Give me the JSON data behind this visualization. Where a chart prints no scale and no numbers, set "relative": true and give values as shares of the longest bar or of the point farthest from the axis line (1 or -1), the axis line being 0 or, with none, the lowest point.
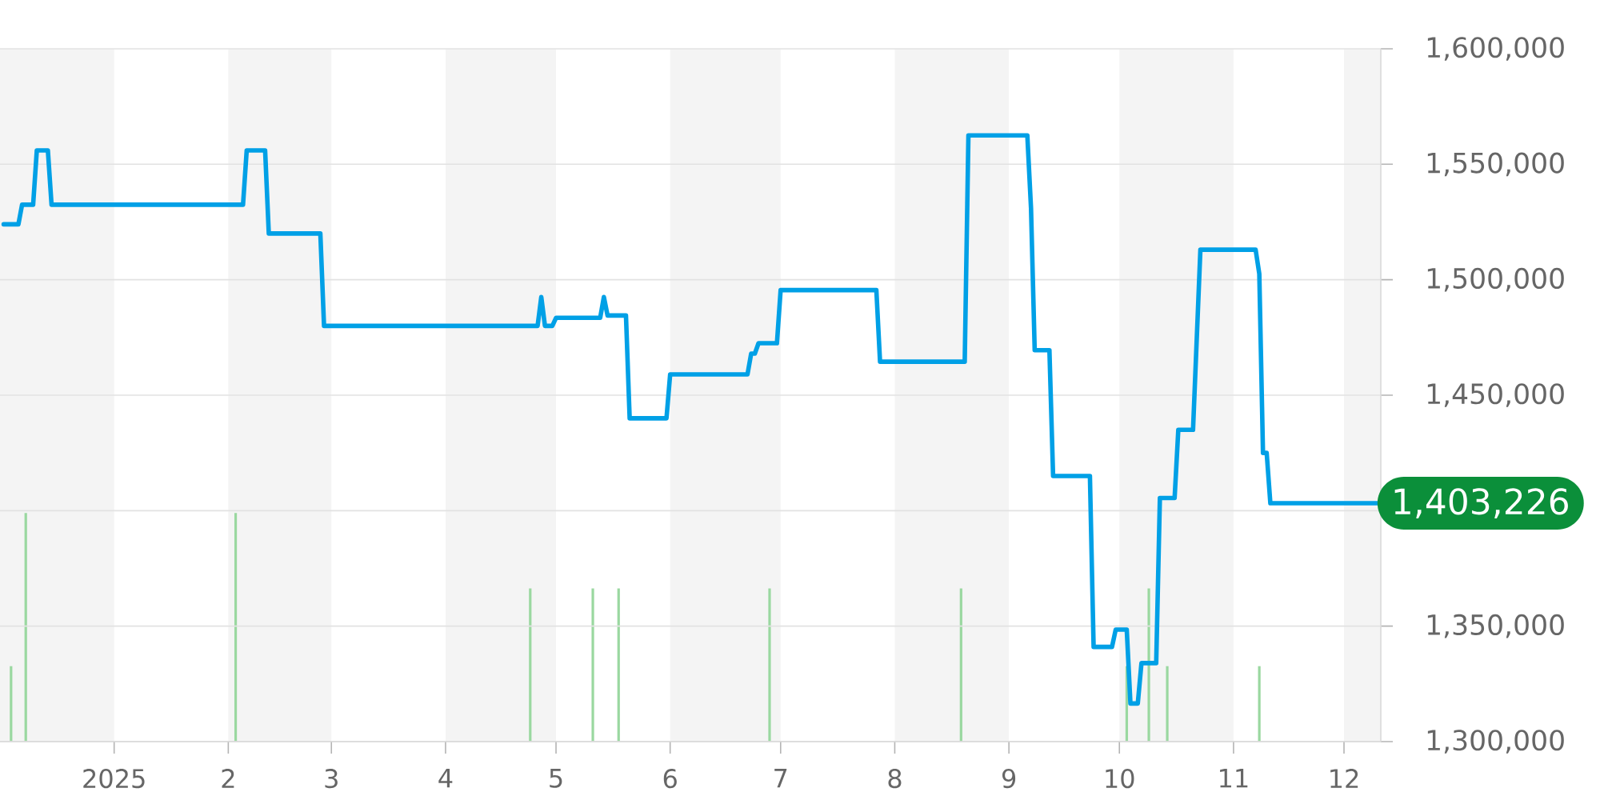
{
  "chart_data": [
    {
      "type": "line",
      "color": "#00a0e6",
      "xlim": [
        "2024-12-01",
        "2025-12-11"
      ],
      "xticks": [
        {
          "value": "2025-01-01",
          "label": "2025"
        },
        {
          "value": "2025-02-01",
          "label": "2"
        },
        {
          "value": "2025-03-01",
          "label": "3"
        },
        {
          "value": "2025-04-01",
          "label": "4"
        },
        {
          "value": "2025-05-01",
          "label": "5"
        },
        {
          "value": "2025-06-01",
          "label": "6"
        },
        {
          "value": "2025-07-01",
          "label": "7"
        },
        {
          "value": "2025-08-01",
          "label": "8"
        },
        {
          "value": "2025-09-01",
          "label": "9"
        },
        {
          "value": "2025-10-01",
          "label": "10"
        },
        {
          "value": "2025-11-01",
          "label": "11"
        },
        {
          "value": "2025-12-01",
          "label": "12"
        }
      ],
      "ylim": [
        1300000,
        1600000
      ],
      "yticks": [
        {
          "value": 1300000,
          "label": "1,300,000"
        },
        {
          "value": 1350000,
          "label": "1,350,000"
        },
        {
          "value": 1400000,
          "label": null
        },
        {
          "value": 1450000,
          "label": "1,450,000"
        },
        {
          "value": 1500000,
          "label": "1,500,000"
        },
        {
          "value": 1550000,
          "label": "1,550,000"
        },
        {
          "value": 1600000,
          "label": "1,600,000"
        }
      ],
      "grid": "y",
      "x": [
        "2024-12-02",
        "2024-12-06",
        "2024-12-07",
        "2024-12-10",
        "2024-12-11",
        "2024-12-14",
        "2024-12-15",
        "2025-02-05",
        "2025-02-06",
        "2025-02-11",
        "2025-02-12",
        "2025-02-26",
        "2025-02-27",
        "2025-04-26",
        "2025-04-27",
        "2025-04-28",
        "2025-04-30",
        "2025-05-01",
        "2025-05-13",
        "2025-05-14",
        "2025-05-15",
        "2025-05-20",
        "2025-05-21",
        "2025-05-31",
        "2025-06-01",
        "2025-06-22",
        "2025-06-23",
        "2025-06-24",
        "2025-06-25",
        "2025-06-30",
        "2025-07-01",
        "2025-07-27",
        "2025-07-28",
        "2025-08-20",
        "2025-08-21",
        "2025-09-06",
        "2025-09-07",
        "2025-09-08",
        "2025-09-12",
        "2025-09-13",
        "2025-09-23",
        "2025-09-24",
        "2025-09-29",
        "2025-09-30",
        "2025-10-03",
        "2025-10-04",
        "2025-10-06",
        "2025-10-07",
        "2025-10-11",
        "2025-10-12",
        "2025-10-16",
        "2025-10-17",
        "2025-10-21",
        "2025-10-23",
        "2025-11-07",
        "2025-11-08",
        "2025-11-09",
        "2025-11-10",
        "2025-11-11",
        "2025-12-10"
      ],
      "values": [
        1524000,
        1524000,
        1532500,
        1532500,
        1556000,
        1556000,
        1532500,
        1532500,
        1556000,
        1556000,
        1520000,
        1520000,
        1480000,
        1480000,
        1492500,
        1480000,
        1480000,
        1483500,
        1483500,
        1492500,
        1484500,
        1484500,
        1440000,
        1440000,
        1459000,
        1459000,
        1468000,
        1468000,
        1472500,
        1472500,
        1495500,
        1495500,
        1464500,
        1464500,
        1562500,
        1562500,
        1531000,
        1469500,
        1469500,
        1415000,
        1415000,
        1341000,
        1341000,
        1348500,
        1348500,
        1316500,
        1316500,
        1334000,
        1334000,
        1405500,
        1405500,
        1435000,
        1435000,
        1513000,
        1513000,
        1502500,
        1425000,
        1425000,
        1403226,
        1403226
      ],
      "value_labels": [
        null,
        null,
        null,
        null,
        null,
        null,
        null,
        null,
        null,
        null,
        null,
        null,
        null,
        null,
        null,
        null,
        null,
        null,
        null,
        null,
        null,
        null,
        null,
        null,
        null,
        null,
        null,
        null,
        null,
        null,
        null,
        null,
        null,
        null,
        null,
        null,
        null,
        null,
        null,
        null,
        null,
        null,
        null,
        null,
        null,
        null,
        null,
        null,
        null,
        null,
        null,
        null,
        null,
        null,
        null,
        null,
        null,
        null,
        null,
        "1,403,226"
      ]
    },
    {
      "type": "bar",
      "relative": true,
      "color": "#9ad8a0",
      "xlim": [
        "2024-12-01",
        "2025-12-11"
      ],
      "bands": [
        {
          "axis": "x",
          "from": "2024-12-01",
          "to": "2025-01-01",
          "color": "#f4f4f4"
        },
        {
          "axis": "x",
          "from": "2025-02-01",
          "to": "2025-03-01",
          "color": "#f4f4f4"
        },
        {
          "axis": "x",
          "from": "2025-04-01",
          "to": "2025-05-01",
          "color": "#f4f4f4"
        },
        {
          "axis": "x",
          "from": "2025-06-01",
          "to": "2025-07-01",
          "color": "#f4f4f4"
        },
        {
          "axis": "x",
          "from": "2025-08-01",
          "to": "2025-09-01",
          "color": "#f4f4f4"
        },
        {
          "axis": "x",
          "from": "2025-10-01",
          "to": "2025-11-01",
          "color": "#f4f4f4"
        },
        {
          "axis": "x",
          "from": "2025-12-01",
          "to": "2025-12-11",
          "color": "#f4f4f4"
        }
      ],
      "x": [
        "2024-12-04",
        "2024-12-08",
        "2025-02-03",
        "2025-04-24",
        "2025-05-11",
        "2025-05-18",
        "2025-06-28",
        "2025-08-19",
        "2025-10-03",
        "2025-10-09",
        "2025-10-14",
        "2025-11-08"
      ],
      "values": [
        0.33,
        1,
        1,
        0.67,
        0.67,
        0.67,
        0.67,
        0.67,
        0.33,
        0.67,
        0.33,
        0.33
      ]
    }
  ]
}
